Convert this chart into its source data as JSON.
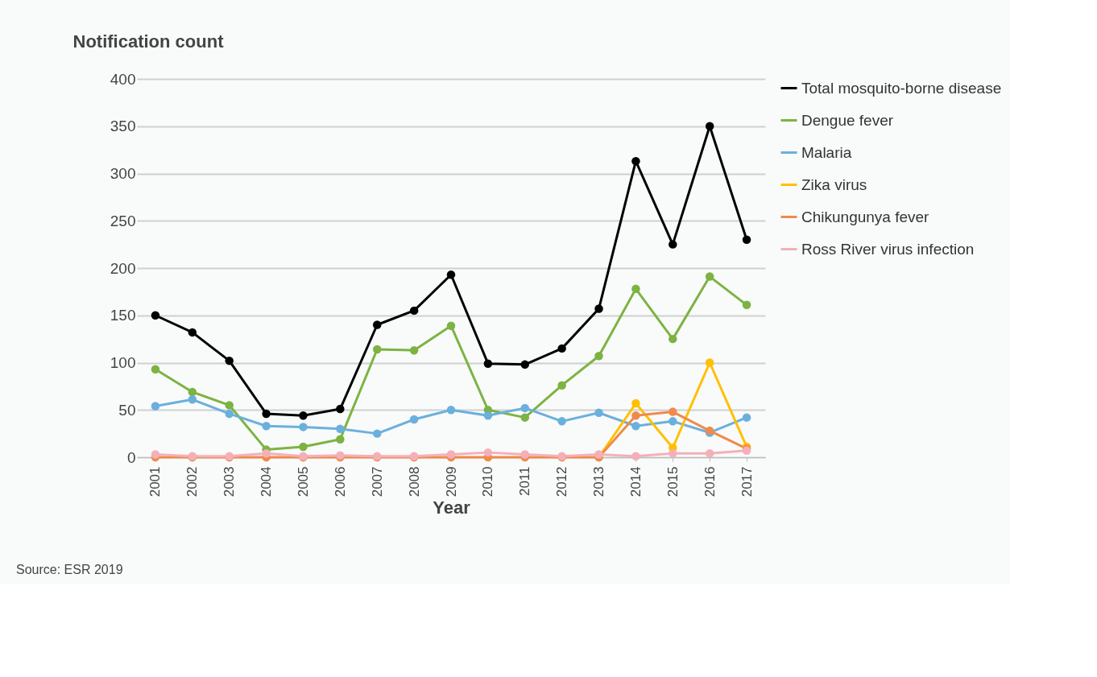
{
  "chart_data": {
    "type": "line",
    "ylabel": "Notification count",
    "xlabel": "Year",
    "categories": [
      "2001",
      "2002",
      "2003",
      "2004",
      "2005",
      "2006",
      "2007",
      "2008",
      "2009",
      "2010",
      "2011",
      "2012",
      "2013",
      "2014",
      "2015",
      "2016",
      "2017"
    ],
    "series": [
      {
        "name": "Total mosquito-borne disease",
        "color": "#000000",
        "values": [
          150,
          132,
          102,
          46,
          44,
          51,
          140,
          155,
          193,
          99,
          98,
          115,
          157,
          313,
          225,
          350,
          230
        ]
      },
      {
        "name": "Dengue fever",
        "color": "#7cb342",
        "values": [
          93,
          69,
          55,
          8,
          11,
          19,
          114,
          113,
          139,
          50,
          42,
          76,
          107,
          178,
          125,
          191,
          161
        ]
      },
      {
        "name": "Malaria",
        "color": "#6ab0de",
        "values": [
          54,
          61,
          46,
          33,
          32,
          30,
          25,
          40,
          50,
          44,
          52,
          38,
          47,
          33,
          38,
          26,
          42
        ]
      },
      {
        "name": "Zika virus",
        "color": "#ffc000",
        "values": [
          null,
          null,
          null,
          null,
          null,
          null,
          null,
          null,
          null,
          null,
          null,
          null,
          0,
          57,
          10,
          100,
          11
        ]
      },
      {
        "name": "Chikungunya fever",
        "color": "#f08a4b",
        "values": [
          0,
          0,
          0,
          0,
          0,
          0,
          0,
          0,
          0,
          0,
          0,
          0,
          0,
          44,
          48,
          28,
          9
        ]
      },
      {
        "name": "Ross River virus infection",
        "color": "#f4b0b8",
        "values": [
          3,
          1,
          1,
          4,
          1,
          2,
          1,
          1,
          3,
          5,
          3,
          1,
          3,
          1,
          4,
          4,
          7
        ]
      }
    ],
    "ylim": [
      0,
      400
    ],
    "yticks": [
      0,
      50,
      100,
      150,
      200,
      250,
      300,
      350,
      400
    ],
    "grid": "y",
    "legend": "right",
    "marker": "circle",
    "line_style": "solid",
    "annotations": [
      "Source: ESR 2019"
    ]
  }
}
